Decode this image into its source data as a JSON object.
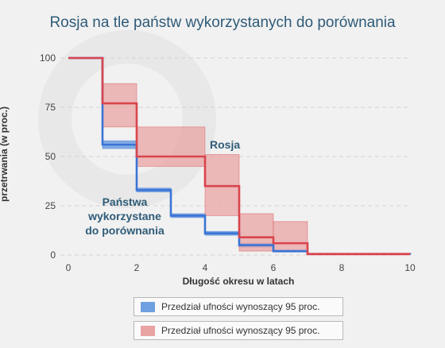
{
  "title": "Rosja na tle państw wykorzystanych do porównania",
  "legend": [
    {
      "label": "Przedział ufności wynoszący 95 proc.",
      "color": "#6fa0e0"
    },
    {
      "label": "Przedział ufności wynoszący 95 proc.",
      "color": "#e8a3a3"
    }
  ],
  "chart_data": {
    "type": "line",
    "title": "Rosja na tle państw wykorzystanych do porównania",
    "xlabel": "Długość okresu w latach",
    "ylabel": "Wyrażone procentowo prawdopodobieństwo przetrwania (w proc.)",
    "xlim": [
      0,
      10
    ],
    "ylim": [
      0,
      100
    ],
    "x_ticks": [
      0,
      2,
      4,
      6,
      8,
      10
    ],
    "y_ticks": [
      0,
      25,
      50,
      75,
      100
    ],
    "series": [
      {
        "name": "Rosja",
        "color": "#d9454d",
        "step_x": [
          0,
          1,
          2,
          4,
          5,
          6,
          7,
          10
        ],
        "step_y": [
          100,
          77,
          50,
          35,
          9,
          6,
          0.5,
          0.5
        ],
        "ci_lower": [
          100,
          65,
          45,
          20,
          2,
          2,
          0,
          0
        ],
        "ci_upper": [
          100,
          87,
          65,
          51,
          21,
          17,
          1,
          1
        ]
      },
      {
        "name": "Państwa wykorzystane do porównania",
        "color": "#3a74d6",
        "step_x": [
          0,
          1,
          2,
          3,
          4,
          5,
          6,
          7,
          10
        ],
        "step_y": [
          100,
          56,
          33,
          20,
          11,
          5,
          2,
          0.5,
          0.2
        ],
        "ci_lower": [
          100,
          54,
          32,
          19,
          10,
          4,
          1.5,
          0.3,
          0.1
        ],
        "ci_upper": [
          100,
          58,
          34,
          21,
          12,
          6,
          2.5,
          0.8,
          0.3
        ]
      }
    ]
  },
  "annotations": {
    "rosja": "Rosja",
    "panstwa_1": "Państwa",
    "panstwa_2": "wykorzystane",
    "panstwa_3": "do porównania"
  }
}
